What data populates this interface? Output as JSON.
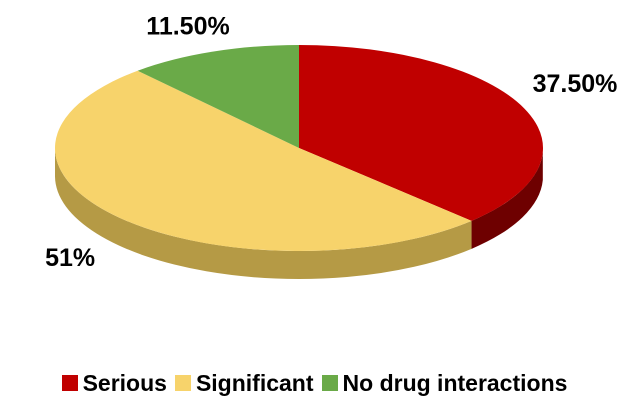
{
  "chart_data": {
    "type": "pie",
    "title": "",
    "categories": [
      "Serious",
      "Significant",
      "No drug interactions"
    ],
    "values": [
      37.5,
      51,
      11.5
    ],
    "value_labels": [
      "37.50%",
      "51%",
      "11.50%"
    ],
    "colors": [
      "#c00000",
      "#f7d36b",
      "#6aaa48"
    ],
    "side_colors": [
      "#6e0000",
      "#b59a45",
      "#3f6e2b"
    ],
    "style": "3d",
    "legend_position": "bottom"
  },
  "legend": {
    "items": [
      {
        "label": "Serious",
        "color": "#c00000"
      },
      {
        "label": "Significant",
        "color": "#f7d36b"
      },
      {
        "label": "No drug interactions",
        "color": "#6aaa48"
      }
    ]
  }
}
